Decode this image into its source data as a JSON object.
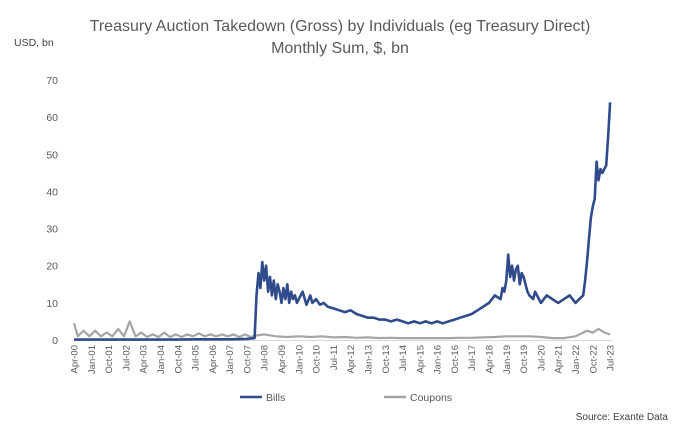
{
  "chart_data": {
    "type": "line",
    "title": "Treasury Auction Takedown (Gross) by Individuals (eg Treasury Direct)",
    "subtitle": "Monthly Sum, $, bn",
    "ylabel": "USD, bn",
    "xlabel": "",
    "ylim": [
      0,
      70
    ],
    "yticks": [
      0,
      10,
      20,
      30,
      40,
      50,
      60,
      70
    ],
    "xlim": [
      "Apr-00",
      "Aug-23"
    ],
    "xticks": [
      "Apr-00",
      "Jan-01",
      "Oct-01",
      "Jul-02",
      "Apr-03",
      "Jan-04",
      "Oct-04",
      "Jul-05",
      "Apr-06",
      "Jan-07",
      "Oct-07",
      "Jul-08",
      "Apr-09",
      "Jan-10",
      "Oct-10",
      "Jul-11",
      "Apr-12",
      "Jan-13",
      "Oct-13",
      "Jul-14",
      "Apr-15",
      "Jan-16",
      "Oct-16",
      "Jul-17",
      "Apr-18",
      "Jan-19",
      "Oct-19",
      "Jul-20",
      "Apr-21",
      "Jan-22",
      "Oct-22",
      "Jul-23"
    ],
    "grid": false,
    "legend_position": "bottom",
    "colors": {
      "Bills": "#2f4b8c",
      "Coupons": "#a5a5a5"
    },
    "series": [
      {
        "name": "Bills",
        "x": [
          "Apr-00",
          "Jan-01",
          "Oct-01",
          "Jul-02",
          "Apr-03",
          "Jan-04",
          "Oct-04",
          "Jul-05",
          "Apr-06",
          "Jan-07",
          "Oct-07",
          "Feb-08",
          "Mar-08",
          "Apr-08",
          "May-08",
          "Jun-08",
          "Jul-08",
          "Aug-08",
          "Sep-08",
          "Oct-08",
          "Nov-08",
          "Dec-08",
          "Jan-09",
          "Feb-09",
          "Mar-09",
          "Apr-09",
          "May-09",
          "Jun-09",
          "Jul-09",
          "Aug-09",
          "Sep-09",
          "Oct-09",
          "Nov-09",
          "Dec-09",
          "Jan-10",
          "Mar-10",
          "May-10",
          "Jul-10",
          "Aug-10",
          "Oct-10",
          "Dec-10",
          "Feb-11",
          "Apr-11",
          "Jul-11",
          "Oct-11",
          "Jan-12",
          "Apr-12",
          "Jul-12",
          "Oct-12",
          "Jan-13",
          "Apr-13",
          "Jul-13",
          "Oct-13",
          "Jan-14",
          "Apr-14",
          "Jul-14",
          "Oct-14",
          "Jan-15",
          "Apr-15",
          "Jul-15",
          "Oct-15",
          "Jan-16",
          "Apr-16",
          "Jul-16",
          "Oct-16",
          "Jan-17",
          "Apr-17",
          "Jul-17",
          "Oct-17",
          "Jan-18",
          "Apr-18",
          "Jul-18",
          "Oct-18",
          "Nov-18",
          "Dec-18",
          "Jan-19",
          "Feb-19",
          "Mar-19",
          "Apr-19",
          "May-19",
          "Jun-19",
          "Jul-19",
          "Aug-19",
          "Sep-19",
          "Oct-19",
          "Nov-19",
          "Dec-19",
          "Jan-20",
          "Mar-20",
          "Apr-20",
          "Jul-20",
          "Oct-20",
          "Jan-21",
          "Apr-21",
          "Jul-21",
          "Oct-21",
          "Jan-22",
          "Mar-22",
          "May-22",
          "Jun-22",
          "Jul-22",
          "Aug-22",
          "Sep-22",
          "Oct-22",
          "Nov-22",
          "Dec-22",
          "Jan-23",
          "Feb-23",
          "Mar-23",
          "Apr-23",
          "May-23",
          "Jun-23",
          "Jul-23"
        ],
        "values": [
          0.1,
          0.1,
          0.1,
          0.1,
          0.1,
          0.1,
          0.1,
          0.2,
          0.2,
          0.2,
          0.3,
          0.5,
          12,
          18,
          14,
          21,
          16,
          20,
          13,
          17,
          12,
          16,
          11,
          15,
          13,
          10,
          14,
          11,
          15,
          10,
          13,
          11,
          12,
          10,
          11,
          13,
          9.5,
          12,
          10,
          11,
          9.5,
          10,
          9,
          8.5,
          8,
          7.5,
          8,
          7,
          6.5,
          6,
          6,
          5.5,
          5.5,
          5,
          5.5,
          5,
          4.5,
          5,
          4.5,
          5,
          4.5,
          5,
          4.5,
          5,
          5.5,
          6,
          6.5,
          7,
          8,
          9,
          10,
          12,
          11,
          14,
          13,
          16,
          23,
          17,
          20,
          16,
          19,
          20,
          15,
          18,
          17,
          15,
          13,
          12,
          11,
          13,
          10,
          12,
          11,
          10,
          11,
          12,
          10,
          11,
          12,
          16,
          21,
          27,
          33,
          36,
          38,
          48,
          43,
          46,
          45,
          46,
          47,
          55,
          64
        ]
      },
      {
        "name": "Coupons",
        "x": [
          "Apr-00",
          "Jun-00",
          "Sep-00",
          "Dec-00",
          "Mar-01",
          "Jun-01",
          "Sep-01",
          "Dec-01",
          "Mar-02",
          "Jun-02",
          "Sep-02",
          "Dec-02",
          "Mar-03",
          "Jun-03",
          "Sep-03",
          "Dec-03",
          "Mar-04",
          "Jun-04",
          "Sep-04",
          "Dec-04",
          "Mar-05",
          "Jun-05",
          "Sep-05",
          "Dec-05",
          "Mar-06",
          "Jun-06",
          "Sep-06",
          "Dec-06",
          "Mar-07",
          "Jun-07",
          "Sep-07",
          "Dec-07",
          "Mar-08",
          "Jul-08",
          "Jan-09",
          "Jul-09",
          "Jan-10",
          "Jul-10",
          "Jan-11",
          "Jul-11",
          "Jan-12",
          "Jul-12",
          "Jan-13",
          "Jul-13",
          "Jan-14",
          "Jul-14",
          "Jan-15",
          "Jul-15",
          "Jan-16",
          "Jul-16",
          "Jan-17",
          "Jul-17",
          "Jan-18",
          "Jul-18",
          "Jan-19",
          "Jul-19",
          "Jan-20",
          "Jul-20",
          "Jan-21",
          "Jul-21",
          "Jan-22",
          "Jul-22",
          "Oct-22",
          "Jan-23",
          "Apr-23",
          "Jul-23"
        ],
        "values": [
          4.5,
          1,
          2.5,
          1,
          2.5,
          1,
          2,
          1,
          3,
          1,
          5,
          1,
          2,
          0.8,
          1.5,
          0.8,
          2,
          0.8,
          1.5,
          0.8,
          1.5,
          1,
          1.8,
          1,
          1.5,
          1,
          1.5,
          1,
          1.5,
          0.8,
          1.5,
          0.8,
          1.2,
          1.5,
          1,
          0.8,
          1,
          0.8,
          1,
          0.7,
          0.8,
          0.6,
          0.7,
          0.5,
          0.6,
          0.5,
          0.5,
          0.5,
          0.5,
          0.5,
          0.6,
          0.6,
          0.7,
          0.8,
          1,
          1,
          1,
          0.8,
          0.5,
          0.5,
          1,
          2.5,
          2,
          3,
          2,
          1.5
        ]
      }
    ],
    "annotations": [
      "Source: Exante Data"
    ]
  }
}
